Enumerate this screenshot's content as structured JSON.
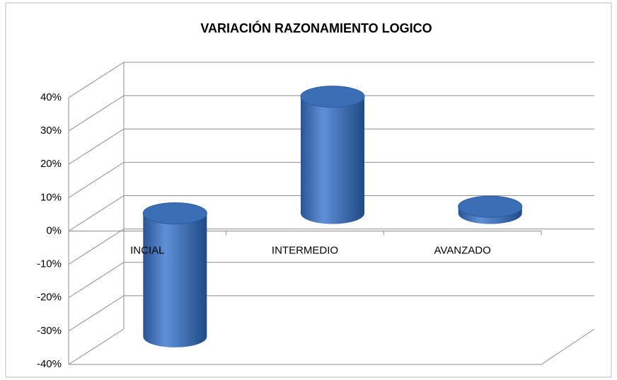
{
  "chart_data": {
    "type": "bar3d",
    "title": "VARIACIÓN  RAZONAMIENTO LOGICO",
    "categories": [
      "INCIAL",
      "INTERMEDIO",
      "AVANZADO"
    ],
    "values": [
      -37,
      35,
      2
    ],
    "color": "#3a6fb5",
    "ylim": [
      -40,
      40
    ],
    "yticks": [
      {
        "value": -40,
        "label": "-40%"
      },
      {
        "value": -30,
        "label": "-30%"
      },
      {
        "value": -20,
        "label": "-20%"
      },
      {
        "value": -10,
        "label": "-10%"
      },
      {
        "value": 0,
        "label": "0%"
      },
      {
        "value": 10,
        "label": "10%"
      },
      {
        "value": 20,
        "label": "20%"
      },
      {
        "value": 30,
        "label": "30%"
      },
      {
        "value": 40,
        "label": "40%"
      }
    ],
    "grid": true
  }
}
